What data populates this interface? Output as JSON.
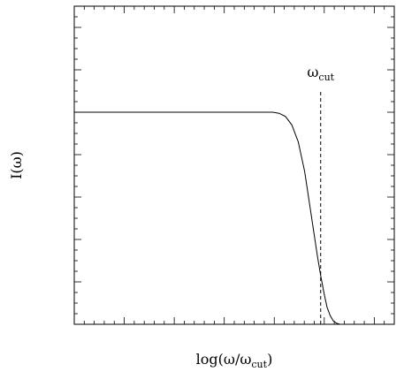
{
  "chart_data": {
    "type": "line",
    "xlabel": "log(ω/ω",
    "xlabel_sub": "cut",
    "xlabel_close": ")",
    "ylabel": "I(ω)",
    "annotation": {
      "main": "ω",
      "sub": "cut",
      "x": 0.77
    },
    "xlim": [
      0,
      1
    ],
    "ylim": [
      0,
      1.5
    ],
    "grid": false,
    "legend": "none",
    "series": [
      {
        "x": [
          0.0,
          0.1,
          0.2,
          0.3,
          0.4,
          0.5,
          0.6,
          0.62,
          0.64,
          0.66,
          0.68,
          0.7,
          0.72,
          0.74,
          0.75,
          0.76,
          0.77,
          0.78,
          0.79,
          0.8,
          0.81,
          0.82,
          0.83
        ],
        "y": [
          1.0,
          1.0,
          1.0,
          1.0,
          1.0,
          1.0,
          1.0,
          1.0,
          0.995,
          0.98,
          0.94,
          0.86,
          0.72,
          0.52,
          0.42,
          0.32,
          0.23,
          0.15,
          0.08,
          0.04,
          0.015,
          0.005,
          0.0
        ]
      }
    ]
  }
}
